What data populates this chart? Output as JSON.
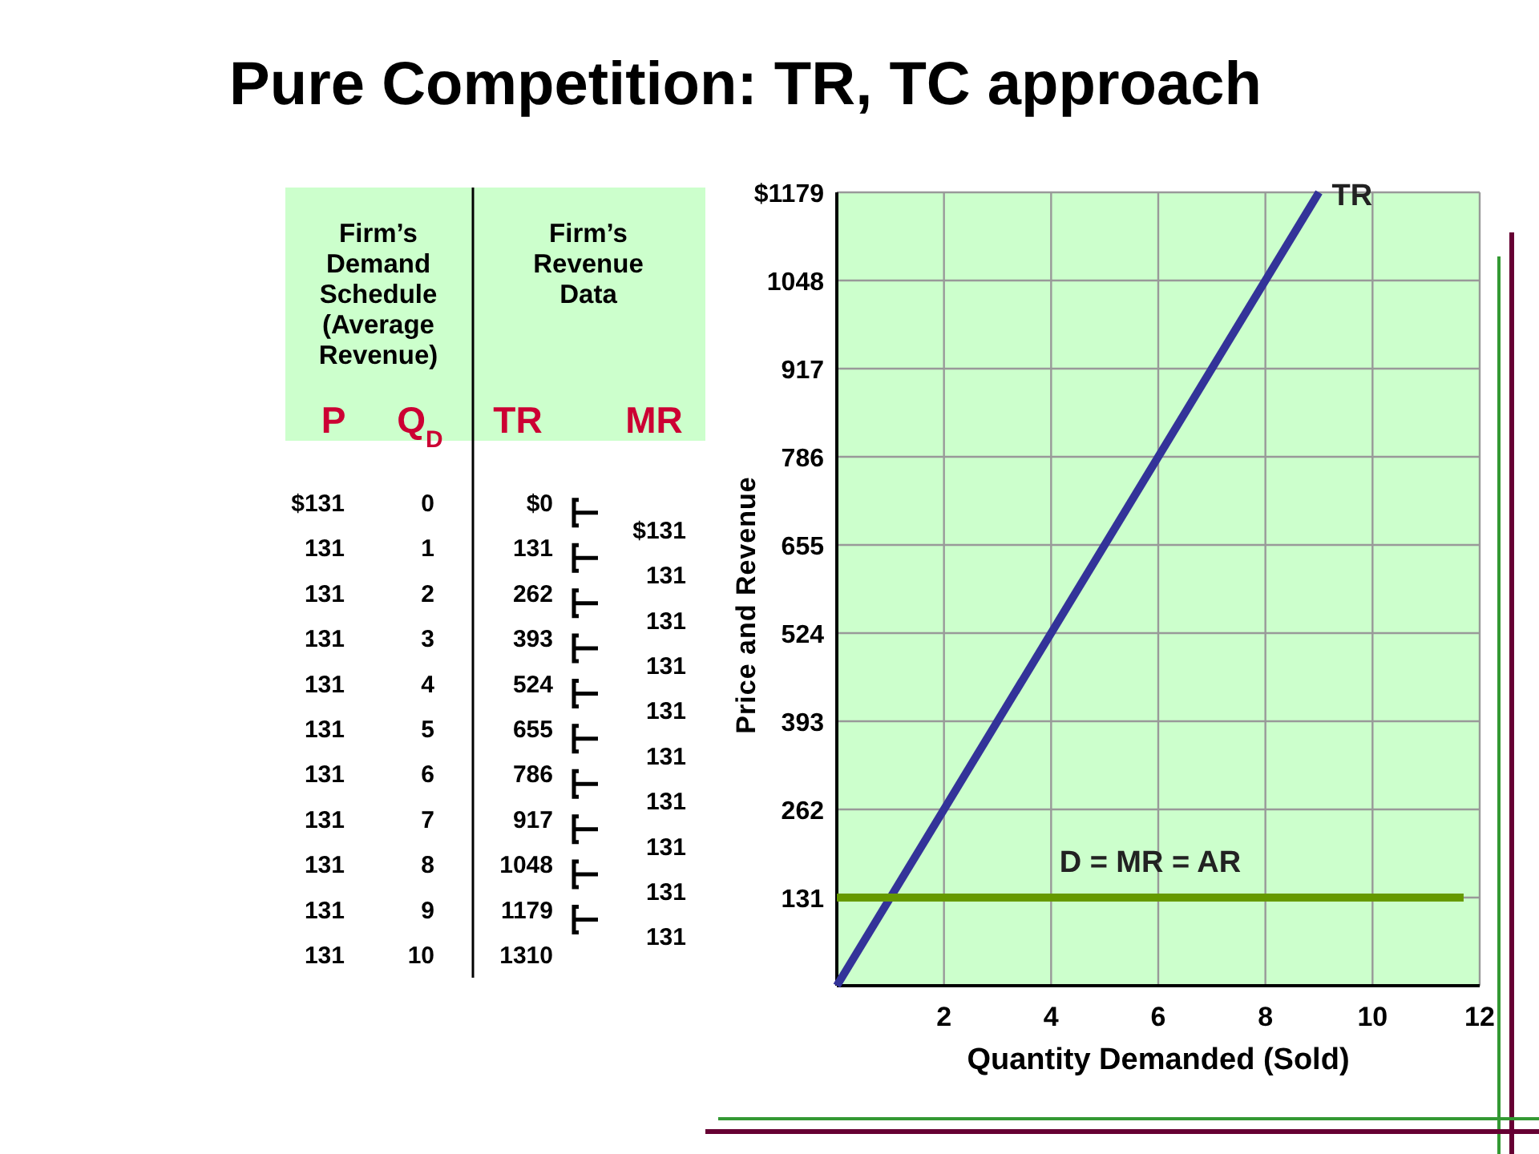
{
  "chart_data": [
    {
      "type": "heatmap",
      "title": "Pure Competition:  TR, TC approach",
      "annotations": [
        "Firm’s Demand Schedule (Average Revenue)",
        "Firm’s Revenue Data"
      ],
      "categories": [
        "P",
        "Q$_{D}$",
        "TR",
        "MR"
      ],
      "y_categories": [
        null,
        null,
        null,
        null,
        null,
        null,
        null,
        null,
        null,
        null,
        null
      ],
      "cells": [
        [
          131,
          0,
          0,
          null
        ],
        [
          131,
          1,
          131,
          131
        ],
        [
          131,
          2,
          262,
          131
        ],
        [
          131,
          3,
          393,
          131
        ],
        [
          131,
          4,
          524,
          131
        ],
        [
          131,
          5,
          655,
          131
        ],
        [
          131,
          6,
          786,
          131
        ],
        [
          131,
          7,
          917,
          131
        ],
        [
          131,
          8,
          1048,
          131
        ],
        [
          131,
          9,
          1179,
          131
        ],
        [
          131,
          10,
          1310,
          131
        ]
      ],
      "cell_labels": [
        [
          "$131",
          "0",
          "$0",
          null
        ],
        [
          "131",
          "1",
          "131",
          "$131"
        ],
        [
          "131",
          "2",
          "262",
          "131"
        ],
        [
          "131",
          "3",
          "393",
          "131"
        ],
        [
          "131",
          "4",
          "524",
          "131"
        ],
        [
          "131",
          "5",
          "655",
          "131"
        ],
        [
          "131",
          "6",
          "786",
          "131"
        ],
        [
          "131",
          "7",
          "917",
          "131"
        ],
        [
          "131",
          "8",
          "1048",
          "131"
        ],
        [
          "131",
          "9",
          "1179",
          "131"
        ],
        [
          "131",
          "10",
          "1310",
          "131"
        ]
      ]
    },
    {
      "type": "line",
      "xlabel": "Quantity Demanded (Sold)",
      "ylabel": "Price and Revenue",
      "xlim": [
        0,
        12
      ],
      "xticks": [
        2,
        4,
        6,
        8,
        10,
        12
      ],
      "ylim": [
        0,
        1179
      ],
      "yticks": [
        131,
        262,
        393,
        524,
        655,
        786,
        917,
        1048,
        {
          "value": 1179,
          "label": "$1179"
        }
      ],
      "grid": true,
      "marker": "none",
      "series": [
        {
          "name": "TR",
          "color": "#333399",
          "x": [
            0,
            9
          ],
          "values": [
            0,
            1179
          ]
        },
        {
          "name": "D = MR = AR",
          "color": "#669900",
          "x": [
            0,
            11.7
          ],
          "values": [
            131,
            131
          ]
        }
      ]
    }
  ]
}
